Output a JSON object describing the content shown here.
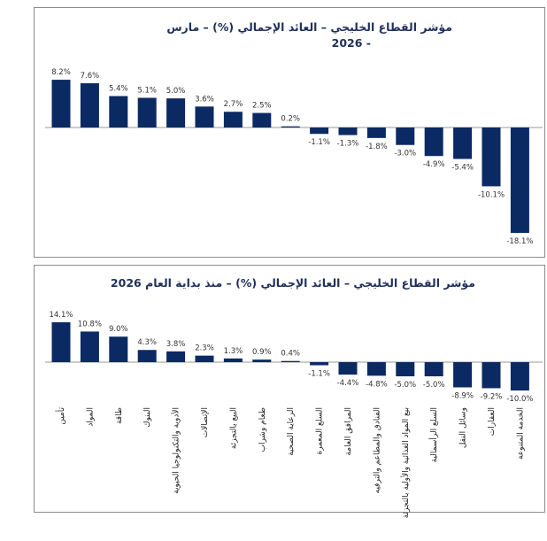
{
  "chart_data": [
    {
      "type": "bar",
      "title": "مؤشر القطاع الخليجي – العائد الإجمالي (%) – مارس",
      "title_line2": "- 2026",
      "values": [
        8.2,
        7.6,
        5.4,
        5.1,
        5.0,
        3.6,
        2.7,
        2.5,
        0.2,
        -1.1,
        -1.3,
        -1.8,
        -3.0,
        -4.9,
        -5.4,
        -10.1,
        -18.1
      ],
      "value_labels": [
        "8.2%",
        "7.6%",
        "5.4%",
        "5.1%",
        "5.0%",
        "3.6%",
        "2.7%",
        "2.5%",
        "0.2%",
        "-1.1%",
        "-1.3%",
        "-1.8%",
        "-3.0%",
        "-4.9%",
        "-5.4%",
        "-10.1%",
        "-18.1%"
      ],
      "ylim": [
        -18.1,
        8.2
      ],
      "bar_color": "#0b2a63"
    },
    {
      "type": "bar",
      "title": "مؤشر القطاع الخليجي – العائد الإجمالي (%) – منذ بداية العام 2026",
      "categories": [
        "تأمين",
        "المواد",
        "طاقة",
        "البنوك",
        "الأدوية والتكنولوجيا الحيوية",
        "الإتصالات",
        "البيع بالتجزئة",
        "طعام وشراب",
        "الرعاية الصحية",
        "السلع المعمرة",
        "المرافق العامة",
        "الفنادق والمطاعم والترفيه",
        "بيع المواد الغذائية والأولية بالتجزئة",
        "السلع الرأسمالية",
        "وسائل النقل",
        "العقارات",
        "الخدمة المتنوعة"
      ],
      "values": [
        14.1,
        10.8,
        9.0,
        4.3,
        3.8,
        2.3,
        1.3,
        0.9,
        0.4,
        -1.1,
        -4.4,
        -4.8,
        -5.0,
        -5.0,
        -8.9,
        -9.2,
        -10.0
      ],
      "value_labels": [
        "14.1%",
        "10.8%",
        "9.0%",
        "4.3%",
        "3.8%",
        "2.3%",
        "1.3%",
        "0.9%",
        "0.4%",
        "-1.1%",
        "-4.4%",
        "-4.8%",
        "-5.0%",
        "-5.0%",
        "-8.9%",
        "-9.2%",
        "-10.0%"
      ],
      "ylim": [
        -10.0,
        14.1
      ],
      "bar_color": "#0b2a63"
    }
  ]
}
